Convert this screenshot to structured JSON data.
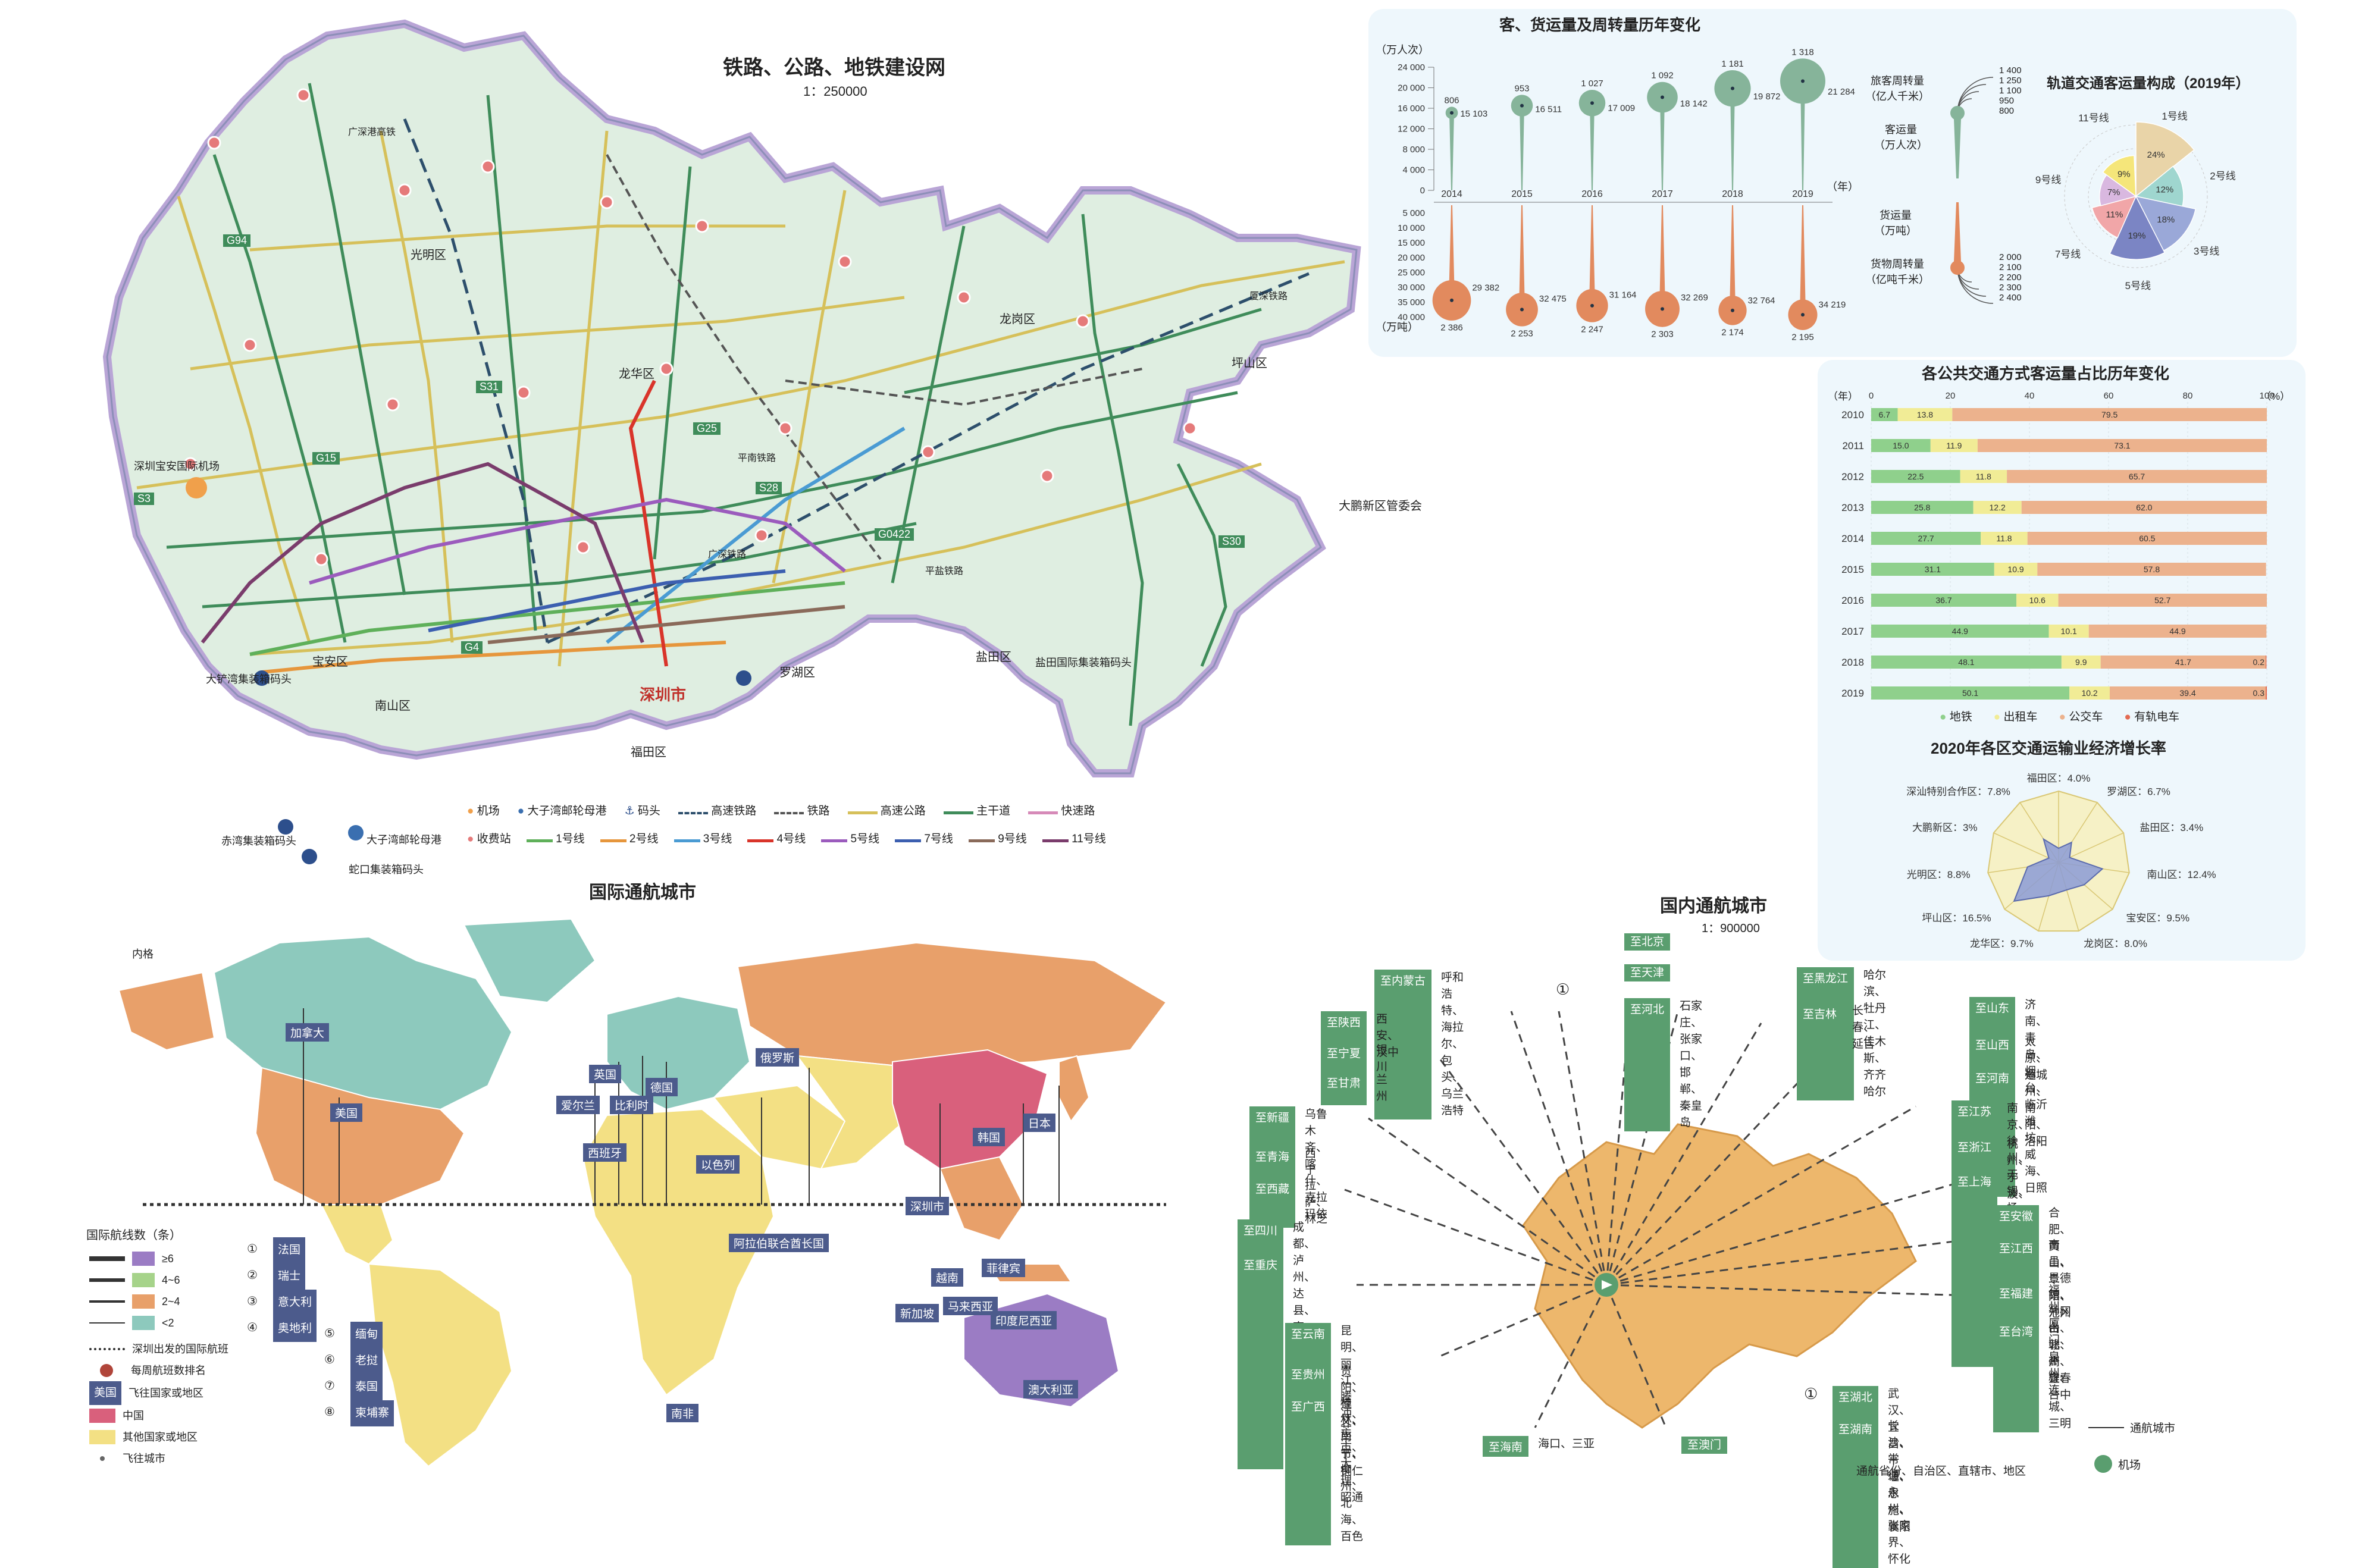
{
  "map_rail": {
    "title": "铁路、公路、地铁建设网",
    "scale": "1：250000",
    "districts": [
      "宝安区",
      "光明区",
      "龙华区",
      "龙岗区",
      "坪山区",
      "大鹏新区管委会",
      "南山区",
      "福田区",
      "罗湖区",
      "盐田区"
    ],
    "places": [
      "深圳宝安国际机场",
      "大铲湾集装箱码头",
      "赤湾集装箱码头",
      "大子湾邮轮母港",
      "蛇口集装箱码头",
      "盐田国际集装箱码头",
      "深圳市"
    ],
    "road_labels": [
      "G4",
      "G15",
      "G25",
      "G94",
      "G0422",
      "S3",
      "S28",
      "S30",
      "S31",
      "广深港高铁",
      "厦深铁路",
      "平南铁路",
      "广深铁路",
      "平盐铁路"
    ],
    "legend": {
      "row1": [
        "机场",
        "大子湾邮轮母港",
        "码头",
        "高速铁路",
        "铁路",
        "高速公路",
        "主干道",
        "快速路"
      ],
      "row2": [
        "收费站",
        "1号线",
        "2号线",
        "3号线",
        "4号线",
        "5号线",
        "7号线",
        "9号线",
        "11号线"
      ]
    },
    "colors": {
      "line1": "#5fb05a",
      "line2": "#e6963c",
      "line3": "#4a9bd3",
      "line4": "#d9342a",
      "line5": "#9b5bbd",
      "line7": "#3c5fb0",
      "line9": "#8a6a5a",
      "line11": "#7a3c6c",
      "highway": "#d6c05a",
      "trunk": "#3f8c5a",
      "express": "#d68ab8",
      "rail": "#555555"
    }
  },
  "volume_chart": {
    "title": "客、货运量及周转量历年变化",
    "unit_top": "（万人次）",
    "unit_bottom": "（万吨）",
    "year_unit": "（年）",
    "y_ticks_top": [
      "24 000",
      "20 000",
      "16 000",
      "12 000",
      "8 000",
      "4 000",
      "0"
    ],
    "y_ticks_bottom": [
      "5 000",
      "10 000",
      "15 000",
      "20 000",
      "25 000",
      "30 000",
      "35 000",
      "40 000"
    ],
    "side_labels": {
      "passenger_turnover": "旅客周转量\n（亿人千米）",
      "passenger": "客运量\n（万人次）",
      "freight": "货运量\n（万吨）",
      "freight_turnover": "货物周转量\n（亿吨千米）"
    },
    "scale_top": [
      "1 400",
      "1 250",
      "1 100",
      "950",
      "800"
    ],
    "scale_bottom": [
      "2 000",
      "2 100",
      "2 200",
      "2 300",
      "2 400"
    ]
  },
  "rail_pie": {
    "title": "轨道交通客运量构成（2019年）",
    "labels": [
      "1号线",
      "2号线",
      "3号线",
      "5号线",
      "7号线",
      "9号线",
      "11号线"
    ]
  },
  "share_chart": {
    "title": "各公共交通方式客运量占比历年变化",
    "x_unit": "（%）",
    "y_unit": "（年）",
    "x_ticks": [
      "0",
      "20",
      "40",
      "60",
      "80",
      "100"
    ],
    "legend": [
      "地铁",
      "出租车",
      "公交车",
      "有轨电车"
    ]
  },
  "radar": {
    "title": "2020年各区交通运输业经济增长率",
    "labels": [
      "福田区：4.0%",
      "罗湖区：6.7%",
      "盐田区：3.4%",
      "南山区：12.4%",
      "宝安区：9.5%",
      "龙岗区：8.0%",
      "龙华区：9.7%",
      "坪山区：16.5%",
      "光明区：8.8%",
      "大鹏新区：3%",
      "深汕特别合作区：7.8%"
    ]
  },
  "intl_map": {
    "title": "国际通航城市",
    "countries": [
      "加拿大",
      "美国",
      "英国",
      "爱尔兰",
      "西班牙",
      "比利时",
      "德国",
      "俄罗斯",
      "以色列",
      "日本",
      "韩国",
      "深圳市",
      "阿拉伯联合酋长国",
      "菲律宾",
      "越南",
      "马来西亚",
      "新加坡",
      "印度尼西亚",
      "澳大利亚",
      "南非"
    ],
    "extra_labels": [
      "内格",
      "法国",
      "瑞士",
      "意大利",
      "奥地利",
      "缅甸",
      "老挝",
      "泰国",
      "柬埔寨"
    ],
    "legend_title": "国际航线数（条）",
    "legend_bins": [
      "≥6",
      "4~6",
      "2~4",
      "<2"
    ],
    "legend_items": [
      "深圳出发的国际航班",
      "每周航班数排名",
      "飞往国家或地区",
      "中国",
      "其他国家或地区",
      "飞往城市"
    ],
    "legend_badge": "美国",
    "numbers_left": [
      "①",
      "②",
      "③",
      "④",
      "⑤",
      "⑥",
      "⑦",
      "⑧"
    ]
  },
  "dom_map": {
    "title": "国内通航城市",
    "scale": "1：900000",
    "routes_left": [
      {
        "tag": "至内蒙古",
        "cities": "呼和浩特、海拉尔、\n包头、乌兰浩特"
      },
      {
        "tag": "至陕西",
        "cities": "西安、汉中"
      },
      {
        "tag": "至宁夏",
        "cities": "银川"
      },
      {
        "tag": "至甘肃",
        "cities": "兰州"
      },
      {
        "tag": "至新疆",
        "cities": "乌鲁木齐、喀什、\n克拉玛依"
      },
      {
        "tag": "至青海",
        "cities": "西宁"
      },
      {
        "tag": "至西藏",
        "cities": "拉萨、林芝"
      },
      {
        "tag": "至四川",
        "cities": "成都、泸州、达县、南充、\n绵阳、广元、攀枝花、西昌"
      },
      {
        "tag": "至重庆",
        "cities": ""
      },
      {
        "tag": "至云南",
        "cities": "昆明、丽江、腾冲、\n芒市、大理、昭通"
      },
      {
        "tag": "至贵州",
        "cities": "贵阳、遵义、毕节、铜仁"
      },
      {
        "tag": "至广西",
        "cities": "桂林、南宁、柳州、北海、百色"
      }
    ],
    "routes_top": [
      {
        "tag": "至北京",
        "cities": ""
      },
      {
        "tag": "至天津",
        "cities": ""
      },
      {
        "tag": "至河北",
        "cities": "石家庄、张家口、\n邯郸、秦皇岛"
      }
    ],
    "routes_right": [
      {
        "tag": "至黑龙江",
        "cities": "哈尔滨、牡丹江、\n佳木斯、齐齐哈尔"
      },
      {
        "tag": "至吉林",
        "cities": "长春、延吉"
      },
      {
        "tag": "至山东",
        "cities": "济南、青岛、烟台、临沂\n潍坊、威海、日照"
      },
      {
        "tag": "至山西",
        "cities": "太原、运城"
      },
      {
        "tag": "至河南",
        "cities": "郑州、南阳、洛阳"
      },
      {
        "tag": "至江苏",
        "cities": "南京、徐州、无锡、扬州、盐城\n南通、连云港、常州、淮安"
      },
      {
        "tag": "至浙江",
        "cities": "杭州、宁波、义乌、温州、\n黄岩、衢州、舟山"
      },
      {
        "tag": "至上海",
        "cities": ""
      },
      {
        "tag": "至安徽",
        "cities": "合肥、黄山、阜阳、池州"
      },
      {
        "tag": "至江西",
        "cities": "南昌、景德镇、井冈山、\n赣州、宜春"
      },
      {
        "tag": "至福建",
        "cities": "福州、厦门、泉州、\n连城、三明"
      },
      {
        "tag": "至台湾",
        "cities": "台北、高雄、台中"
      }
    ],
    "routes_bottom": [
      {
        "tag": "至湖北",
        "cities": "武汉、宜昌、十堰、恩施、襄阳"
      },
      {
        "tag": "至湖南",
        "cities": "长沙、常德、永州、张家界、怀化"
      },
      {
        "tag": "至海南",
        "cities": "海口、三亚"
      },
      {
        "tag": "至澳门",
        "cities": ""
      }
    ],
    "legend": [
      "通航城市",
      "通航省份、自治区、直辖市、地区",
      "机场"
    ],
    "marker": "①"
  },
  "chart_data": [
    {
      "type": "bubble-line",
      "title": "客、货运量及周转量历年变化",
      "x": [
        2014,
        2015,
        2016,
        2017,
        2018,
        2019
      ],
      "series": [
        {
          "name": "客运量",
          "unit": "万人次",
          "values": [
            15103,
            16511,
            17009,
            18142,
            19872,
            21284
          ]
        },
        {
          "name": "旅客周转量",
          "unit": "亿人千米",
          "values": [
            806,
            953,
            1027,
            1092,
            1181,
            1318
          ]
        },
        {
          "name": "货运量",
          "unit": "万吨",
          "values": [
            29382,
            32475,
            31164,
            32269,
            32764,
            34219
          ]
        },
        {
          "name": "货物周转量",
          "unit": "亿吨千米",
          "values": [
            2386,
            2253,
            2247,
            2303,
            2174,
            2195
          ]
        }
      ],
      "ylim_top": [
        0,
        24000
      ],
      "ylim_bottom": [
        0,
        40000
      ]
    },
    {
      "type": "pie",
      "title": "轨道交通客运量构成（2019年）",
      "categories": [
        "1号线",
        "2号线",
        "3号线",
        "5号线",
        "7号线",
        "9号线",
        "11号线"
      ],
      "values": [
        24,
        12,
        18,
        19,
        11,
        7,
        9
      ],
      "colors": [
        "#e9d4a8",
        "#9fd6cf",
        "#9aa8d8",
        "#7b85c4",
        "#f1a6a8",
        "#d9b8e0",
        "#f5e67a"
      ]
    },
    {
      "type": "bar",
      "title": "各公共交通方式客运量占比历年变化",
      "categories": [
        "2010",
        "2011",
        "2012",
        "2013",
        "2014",
        "2015",
        "2016",
        "2017",
        "2018",
        "2019"
      ],
      "series": [
        {
          "name": "地铁",
          "values": [
            6.7,
            15.0,
            22.5,
            25.8,
            27.7,
            31.1,
            36.7,
            44.9,
            48.1,
            50.1
          ],
          "color": "#8fd08c"
        },
        {
          "name": "出租车",
          "values": [
            13.8,
            11.9,
            11.8,
            12.2,
            11.8,
            10.9,
            10.6,
            10.1,
            9.9,
            10.2
          ],
          "color": "#f1ec96"
        },
        {
          "name": "公交车",
          "values": [
            79.5,
            73.1,
            65.7,
            62.0,
            60.5,
            57.8,
            52.7,
            44.9,
            41.7,
            39.4
          ],
          "color": "#ecb28d"
        },
        {
          "name": "有轨电车",
          "values": [
            0,
            0,
            0,
            0,
            0,
            0,
            0,
            0,
            0.2,
            0.3
          ],
          "color": "#e36b52"
        }
      ],
      "xlim": [
        0,
        100
      ]
    },
    {
      "type": "radar",
      "title": "2020年各区交通运输业经济增长率",
      "categories": [
        "福田区",
        "罗湖区",
        "盐田区",
        "南山区",
        "宝安区",
        "龙岗区",
        "龙华区",
        "坪山区",
        "光明区",
        "大鹏新区",
        "深汕特别合作区"
      ],
      "values": [
        4.0,
        6.7,
        3.4,
        12.4,
        9.5,
        8.0,
        9.7,
        16.5,
        8.8,
        3,
        7.8
      ],
      "unit": "%"
    }
  ]
}
